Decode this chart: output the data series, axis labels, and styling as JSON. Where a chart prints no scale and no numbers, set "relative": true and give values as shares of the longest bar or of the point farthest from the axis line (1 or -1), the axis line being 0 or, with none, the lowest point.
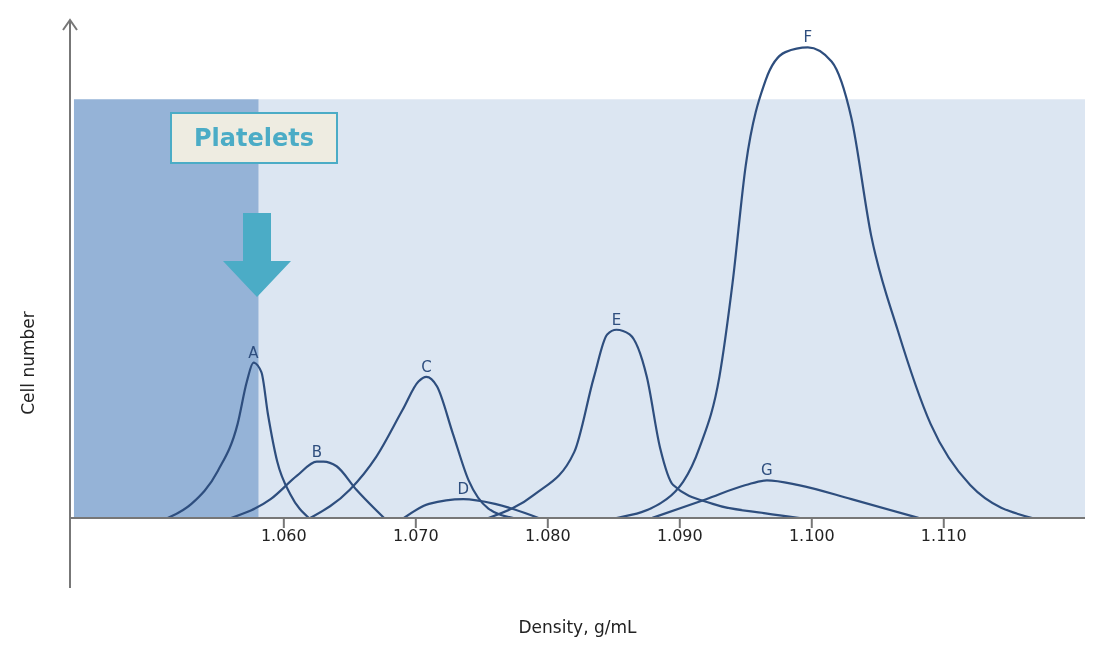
{
  "chart_data": {
    "type": "line",
    "relative": true,
    "xlabel": "Density, g/mL",
    "ylabel": "Cell number",
    "xlim": [
      1.0438,
      1.1207
    ],
    "xticks": [
      {
        "value": 1.06,
        "label": "1.060"
      },
      {
        "value": 1.07,
        "label": "1.070"
      },
      {
        "value": 1.08,
        "label": "1.080"
      },
      {
        "value": 1.09,
        "label": "1.090"
      },
      {
        "value": 1.1,
        "label": "1.100"
      },
      {
        "value": 1.11,
        "label": "1.110"
      }
    ],
    "marker": "none",
    "line_style": "solid",
    "bands": [
      {
        "axis": "x",
        "from": 1.0441,
        "to": 1.0581,
        "label": "Platelets",
        "color": "#95b3d7"
      },
      {
        "axis": "x",
        "from": 1.0581,
        "to": 1.1207,
        "color": "#dce6f2"
      }
    ],
    "series": [
      {
        "name": "A",
        "color": "#2e4e7e",
        "x": [
          1.0512,
          1.053,
          1.055,
          1.0565,
          1.0572,
          1.0577,
          1.0583,
          1.0588,
          1.0595,
          1.0605,
          1.0619
        ],
        "values": [
          0,
          0.03,
          0.1,
          0.2,
          0.29,
          0.33,
          0.31,
          0.22,
          0.12,
          0.05,
          0
        ]
      },
      {
        "name": "B",
        "color": "#2e4e7e",
        "x": [
          1.056,
          1.059,
          1.061,
          1.0625,
          1.063,
          1.064,
          1.0655,
          1.0676
        ],
        "values": [
          0,
          0.04,
          0.09,
          0.12,
          0.12,
          0.11,
          0.06,
          0
        ]
      },
      {
        "name": "C",
        "color": "#2e4e7e",
        "x": [
          1.062,
          1.065,
          1.067,
          1.069,
          1.0702,
          1.0708,
          1.0716,
          1.0728,
          1.074,
          1.0755,
          1.0774
        ],
        "values": [
          0,
          0.06,
          0.13,
          0.23,
          0.29,
          0.3,
          0.28,
          0.18,
          0.08,
          0.02,
          0
        ]
      },
      {
        "name": "D",
        "color": "#2e4e7e",
        "x": [
          1.0691,
          1.071,
          1.0736,
          1.076,
          1.0793
        ],
        "values": [
          0,
          0.03,
          0.04,
          0.03,
          0
        ]
      },
      {
        "name": "E",
        "color": "#2e4e7e",
        "x": [
          1.0755,
          1.079,
          1.082,
          1.0835,
          1.0845,
          1.0852,
          1.0862,
          1.0875,
          1.0885,
          1.0895,
          1.0925,
          1.0965,
          1.0991
        ],
        "values": [
          0,
          0.05,
          0.14,
          0.3,
          0.39,
          0.4,
          0.39,
          0.3,
          0.15,
          0.07,
          0.03,
          0.01,
          0
        ]
      },
      {
        "name": "F",
        "color": "#2e4e7e",
        "x": [
          1.0852,
          1.089,
          1.0915,
          1.093,
          1.094,
          1.095,
          1.0965,
          1.098,
          1.0997,
          1.1015,
          1.103,
          1.1045,
          1.1065,
          1.109,
          1.112,
          1.1167
        ],
        "values": [
          0,
          0.04,
          0.15,
          0.3,
          0.5,
          0.75,
          0.93,
          0.99,
          1.0,
          0.97,
          0.85,
          0.6,
          0.4,
          0.2,
          0.07,
          0
        ]
      },
      {
        "name": "G",
        "color": "#2e4e7e",
        "x": [
          1.0879,
          1.092,
          1.095,
          1.0966,
          1.099,
          1.103,
          1.1081
        ],
        "values": [
          0,
          0.04,
          0.07,
          0.08,
          0.07,
          0.04,
          0
        ]
      }
    ]
  }
}
